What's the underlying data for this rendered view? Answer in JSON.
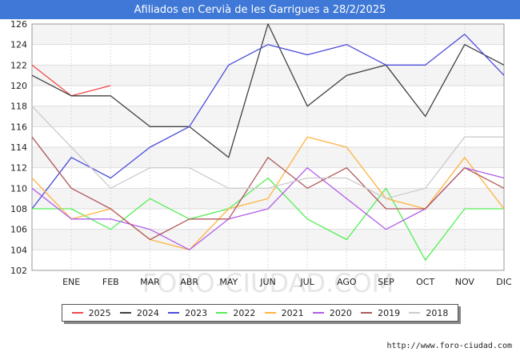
{
  "title": "Afiliados en Cervià de les Garrigues a 28/2/2025",
  "source": "http://www.foro-ciudad.com",
  "watermark": "FORO-CIUDAD.COM",
  "chart_data": {
    "type": "line",
    "categories": [
      "",
      "ENE",
      "FEB",
      "MAR",
      "ABR",
      "MAY",
      "JUN",
      "JUL",
      "AGO",
      "SEP",
      "OCT",
      "NOV",
      "DIC"
    ],
    "ylim": [
      102,
      126
    ],
    "yticks": [
      102,
      104,
      106,
      108,
      110,
      112,
      114,
      116,
      118,
      120,
      122,
      124,
      126
    ],
    "grid": true,
    "legend_position": "bottom",
    "series": [
      {
        "name": "2025",
        "color": "#f0494a",
        "values": [
          122,
          119,
          120,
          null,
          null,
          null,
          null,
          null,
          null,
          null,
          null,
          null,
          null
        ]
      },
      {
        "name": "2024",
        "color": "#404040",
        "values": [
          121,
          119,
          119,
          116,
          116,
          113,
          126,
          118,
          121,
          122,
          117,
          124,
          122
        ]
      },
      {
        "name": "2023",
        "color": "#4b4bdc",
        "values": [
          108,
          113,
          111,
          114,
          116,
          122,
          124,
          123,
          124,
          122,
          122,
          125,
          121
        ]
      },
      {
        "name": "2022",
        "color": "#55ee55",
        "values": [
          108,
          108,
          106,
          109,
          107,
          108,
          111,
          107,
          105,
          110,
          103,
          108,
          108
        ]
      },
      {
        "name": "2021",
        "color": "#ffb340",
        "values": [
          111,
          107,
          108,
          105,
          104,
          108,
          109,
          115,
          114,
          109,
          108,
          113,
          108
        ]
      },
      {
        "name": "2020",
        "color": "#b25ce8",
        "values": [
          110,
          107,
          107,
          106,
          104,
          107,
          108,
          112,
          109,
          106,
          108,
          112,
          111
        ]
      },
      {
        "name": "2019",
        "color": "#b0585c",
        "values": [
          115,
          110,
          108,
          105,
          107,
          107,
          113,
          110,
          112,
          108,
          108,
          112,
          110
        ]
      },
      {
        "name": "2018",
        "color": "#cccccc",
        "values": [
          118,
          114,
          110,
          112,
          112,
          110,
          110,
          111,
          111,
          109,
          110,
          115,
          115
        ]
      }
    ]
  }
}
